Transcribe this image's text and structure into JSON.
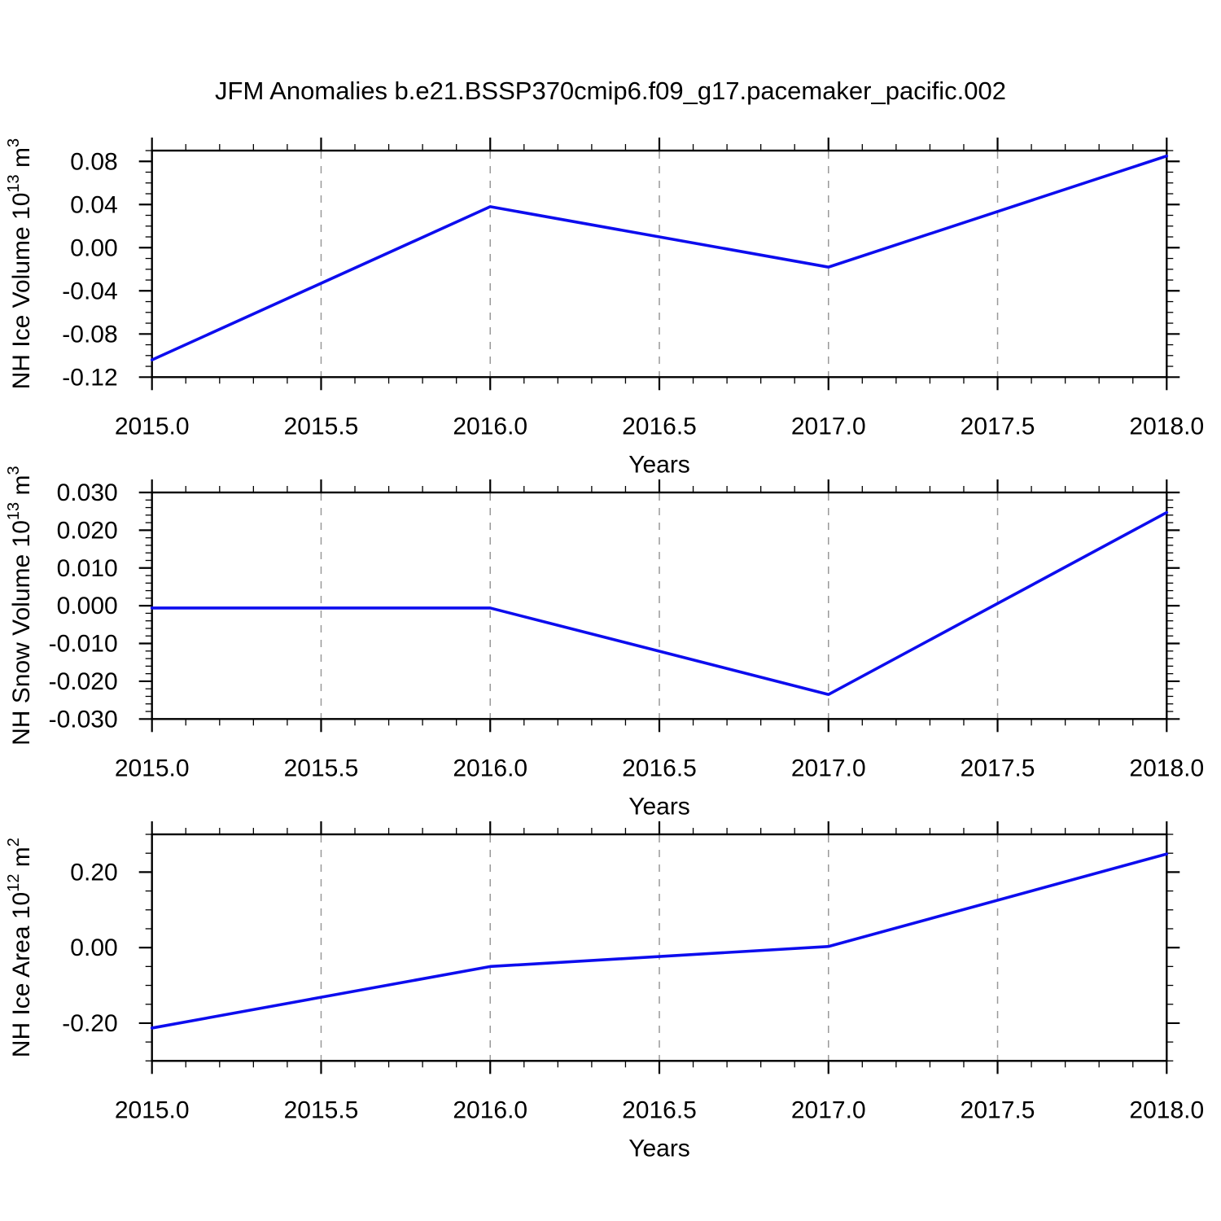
{
  "title": "JFM Anomalies b.e21.BSSP370cmip6.f09_g17.pacemaker_pacific.002",
  "line_color": "#0d0dee",
  "axis_color": "#000000",
  "grid_color": "#999999",
  "xlabel": "Years",
  "chart_data": [
    {
      "type": "line",
      "name": "nh-ice-volume",
      "x": [
        2015.0,
        2016.0,
        2017.0,
        2018.0
      ],
      "values": [
        -0.104,
        0.038,
        -0.018,
        0.085
      ],
      "xlabel": "Years",
      "ylabel_parts": [
        {
          "t": "NH Ice Volume 10"
        },
        {
          "t": "13",
          "sup": true
        },
        {
          "t": " m"
        },
        {
          "t": "3",
          "sup": true
        }
      ],
      "xlim": [
        2015.0,
        2018.0
      ],
      "ylim": [
        -0.12,
        0.09
      ],
      "xticks": [
        2015.0,
        2015.5,
        2016.0,
        2016.5,
        2017.0,
        2017.5,
        2018.0
      ],
      "xtick_labels": [
        "2015.0",
        "2015.5",
        "2016.0",
        "2016.5",
        "2017.0",
        "2017.5",
        "2018.0"
      ],
      "xminor_step": 0.1,
      "yticks": [
        -0.12,
        -0.08,
        -0.04,
        0.0,
        0.04,
        0.08
      ],
      "ytick_labels": [
        "-0.12",
        "-0.08",
        "-0.04",
        "0.00",
        "0.04",
        "0.08"
      ],
      "yminor_step": 0.01,
      "grid_x": [
        2015.5,
        2016.0,
        2016.5,
        2017.0,
        2017.5
      ],
      "grid": "vertical-dashed",
      "legend": "none"
    },
    {
      "type": "line",
      "name": "nh-snow-volume",
      "x": [
        2015.0,
        2016.0,
        2017.0,
        2018.0
      ],
      "values": [
        -0.0006,
        -0.0006,
        -0.0235,
        0.0247
      ],
      "xlabel": "Years",
      "ylabel_parts": [
        {
          "t": "NH Snow Volume 10"
        },
        {
          "t": "13",
          "sup": true
        },
        {
          "t": " m"
        },
        {
          "t": "3",
          "sup": true
        }
      ],
      "xlim": [
        2015.0,
        2018.0
      ],
      "ylim": [
        -0.03,
        0.03
      ],
      "xticks": [
        2015.0,
        2015.5,
        2016.0,
        2016.5,
        2017.0,
        2017.5,
        2018.0
      ],
      "xtick_labels": [
        "2015.0",
        "2015.5",
        "2016.0",
        "2016.5",
        "2017.0",
        "2017.5",
        "2018.0"
      ],
      "xminor_step": 0.1,
      "yticks": [
        -0.03,
        -0.02,
        -0.01,
        0.0,
        0.01,
        0.02,
        0.03
      ],
      "ytick_labels": [
        "-0.030",
        "-0.020",
        "-0.010",
        "0.000",
        "0.010",
        "0.020",
        "0.030"
      ],
      "yminor_step": 0.002,
      "grid_x": [
        2015.5,
        2016.0,
        2016.5,
        2017.0,
        2017.5
      ],
      "grid": "vertical-dashed",
      "legend": "none"
    },
    {
      "type": "line",
      "name": "nh-ice-area",
      "x": [
        2015.0,
        2016.0,
        2017.0,
        2018.0
      ],
      "values": [
        -0.213,
        -0.05,
        0.003,
        0.248
      ],
      "xlabel": "Years",
      "ylabel_parts": [
        {
          "t": "NH Ice Area 10"
        },
        {
          "t": "12",
          "sup": true
        },
        {
          "t": " m"
        },
        {
          "t": "2",
          "sup": true
        }
      ],
      "xlim": [
        2015.0,
        2018.0
      ],
      "ylim": [
        -0.3,
        0.3
      ],
      "xticks": [
        2015.0,
        2015.5,
        2016.0,
        2016.5,
        2017.0,
        2017.5,
        2018.0
      ],
      "xtick_labels": [
        "2015.0",
        "2015.5",
        "2016.0",
        "2016.5",
        "2017.0",
        "2017.5",
        "2018.0"
      ],
      "xminor_step": 0.1,
      "yticks": [
        -0.2,
        0.0,
        0.2
      ],
      "ytick_labels": [
        "-0.20",
        "0.00",
        "0.20"
      ],
      "yminor_step": 0.05,
      "grid_x": [
        2015.5,
        2016.0,
        2016.5,
        2017.0,
        2017.5
      ],
      "grid": "vertical-dashed",
      "legend": "none"
    }
  ]
}
